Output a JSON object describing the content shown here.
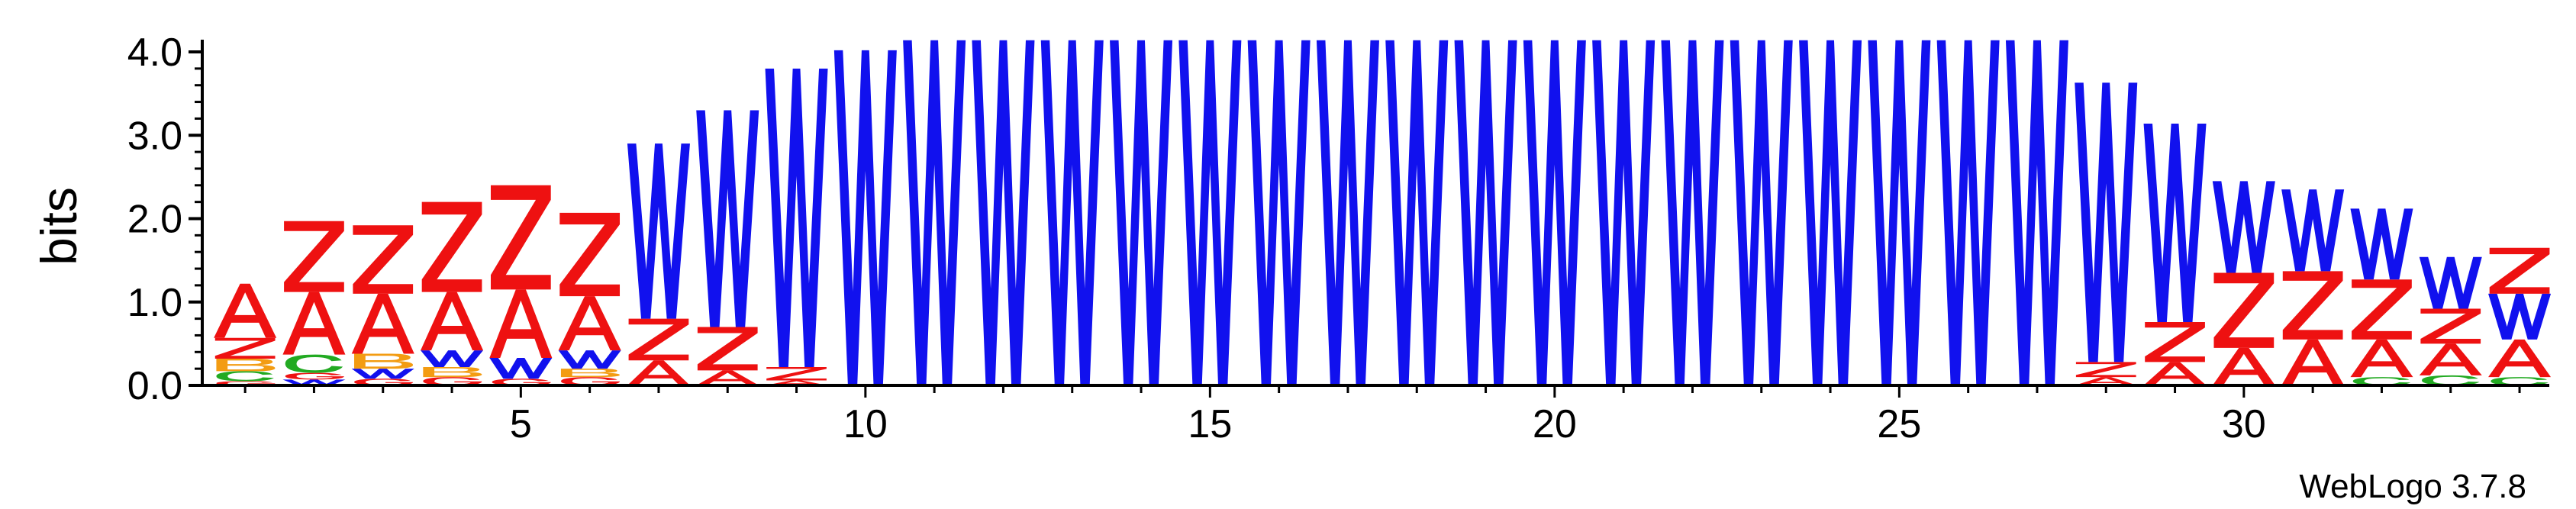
{
  "chart_data": {
    "type": "sequence-logo",
    "ylabel": "bits",
    "ylim": [
      0,
      4.0
    ],
    "yticks": [
      "0.0",
      "1.0",
      "2.0",
      "3.0",
      "4.0"
    ],
    "xticks": [
      5,
      10,
      15,
      20,
      25,
      30
    ],
    "xlim": [
      0.5,
      34.5
    ],
    "credit": "WebLogo 3.7.8",
    "colors": {
      "A": "#ee1111",
      "Z": "#ee1111",
      "W": "#1111ee",
      "B": "#f39c12",
      "C": "#22aa22",
      "G": "#ee1111"
    },
    "positions": [
      {
        "pos": 1,
        "stack": [
          [
            "G",
            0.05
          ],
          [
            "C",
            0.12
          ],
          [
            "B",
            0.15
          ],
          [
            "Z",
            0.25
          ],
          [
            "A",
            0.65
          ]
        ]
      },
      {
        "pos": 2,
        "stack": [
          [
            "W",
            0.07
          ],
          [
            "G",
            0.08
          ],
          [
            "C",
            0.22
          ],
          [
            "A",
            0.75
          ],
          [
            "Z",
            0.85
          ]
        ]
      },
      {
        "pos": 3,
        "stack": [
          [
            "G",
            0.08
          ],
          [
            "W",
            0.12
          ],
          [
            "B",
            0.18
          ],
          [
            "A",
            0.72
          ],
          [
            "Z",
            0.82
          ]
        ]
      },
      {
        "pos": 4,
        "stack": [
          [
            "G",
            0.1
          ],
          [
            "B",
            0.12
          ],
          [
            "W",
            0.2
          ],
          [
            "A",
            0.7
          ],
          [
            "Z",
            1.08
          ]
        ]
      },
      {
        "pos": 5,
        "stack": [
          [
            "G",
            0.08
          ],
          [
            "W",
            0.25
          ],
          [
            "A",
            0.82
          ],
          [
            "Z",
            1.25
          ]
        ]
      },
      {
        "pos": 6,
        "stack": [
          [
            "G",
            0.1
          ],
          [
            "B",
            0.1
          ],
          [
            "W",
            0.22
          ],
          [
            "A",
            0.65
          ],
          [
            "Z",
            1.0
          ]
        ]
      },
      {
        "pos": 7,
        "stack": [
          [
            "A",
            0.3
          ],
          [
            "Z",
            0.5
          ],
          [
            "W",
            2.1
          ]
        ]
      },
      {
        "pos": 8,
        "stack": [
          [
            "A",
            0.18
          ],
          [
            "Z",
            0.52
          ],
          [
            "W",
            2.6
          ]
        ]
      },
      {
        "pos": 9,
        "stack": [
          [
            "A",
            0.06
          ],
          [
            "Z",
            0.16
          ],
          [
            "W",
            3.58
          ]
        ]
      },
      {
        "pos": 10,
        "stack": [
          [
            "W",
            4.02
          ]
        ]
      },
      {
        "pos": 11,
        "stack": [
          [
            "W",
            4.14
          ]
        ]
      },
      {
        "pos": 12,
        "stack": [
          [
            "W",
            4.14
          ]
        ]
      },
      {
        "pos": 13,
        "stack": [
          [
            "W",
            4.14
          ]
        ]
      },
      {
        "pos": 14,
        "stack": [
          [
            "W",
            4.14
          ]
        ]
      },
      {
        "pos": 15,
        "stack": [
          [
            "W",
            4.14
          ]
        ]
      },
      {
        "pos": 16,
        "stack": [
          [
            "W",
            4.14
          ]
        ]
      },
      {
        "pos": 17,
        "stack": [
          [
            "W",
            4.14
          ]
        ]
      },
      {
        "pos": 18,
        "stack": [
          [
            "W",
            4.14
          ]
        ]
      },
      {
        "pos": 19,
        "stack": [
          [
            "W",
            4.14
          ]
        ]
      },
      {
        "pos": 20,
        "stack": [
          [
            "W",
            4.14
          ]
        ]
      },
      {
        "pos": 21,
        "stack": [
          [
            "W",
            4.14
          ]
        ]
      },
      {
        "pos": 22,
        "stack": [
          [
            "W",
            4.14
          ]
        ]
      },
      {
        "pos": 23,
        "stack": [
          [
            "W",
            4.14
          ]
        ]
      },
      {
        "pos": 24,
        "stack": [
          [
            "W",
            4.14
          ]
        ]
      },
      {
        "pos": 25,
        "stack": [
          [
            "W",
            4.14
          ]
        ]
      },
      {
        "pos": 26,
        "stack": [
          [
            "W",
            4.14
          ]
        ]
      },
      {
        "pos": 27,
        "stack": [
          [
            "W",
            4.14
          ]
        ]
      },
      {
        "pos": 28,
        "stack": [
          [
            "A",
            0.1
          ],
          [
            "Z",
            0.18
          ],
          [
            "W",
            3.35
          ]
        ]
      },
      {
        "pos": 29,
        "stack": [
          [
            "A",
            0.28
          ],
          [
            "Z",
            0.48
          ],
          [
            "W",
            2.38
          ]
        ]
      },
      {
        "pos": 30,
        "stack": [
          [
            "A",
            0.45
          ],
          [
            "Z",
            0.9
          ],
          [
            "W",
            1.1
          ]
        ]
      },
      {
        "pos": 31,
        "stack": [
          [
            "A",
            0.55
          ],
          [
            "Z",
            0.82
          ],
          [
            "W",
            0.98
          ]
        ]
      },
      {
        "pos": 32,
        "stack": [
          [
            "C",
            0.1
          ],
          [
            "A",
            0.45
          ],
          [
            "Z",
            0.72
          ],
          [
            "W",
            0.85
          ]
        ]
      },
      {
        "pos": 33,
        "stack": [
          [
            "C",
            0.12
          ],
          [
            "A",
            0.38
          ],
          [
            "Z",
            0.42
          ],
          [
            "W",
            0.62
          ]
        ]
      },
      {
        "pos": 34,
        "stack": [
          [
            "C",
            0.1
          ],
          [
            "A",
            0.45
          ],
          [
            "W",
            0.55
          ],
          [
            "Z",
            0.55
          ]
        ]
      }
    ]
  }
}
